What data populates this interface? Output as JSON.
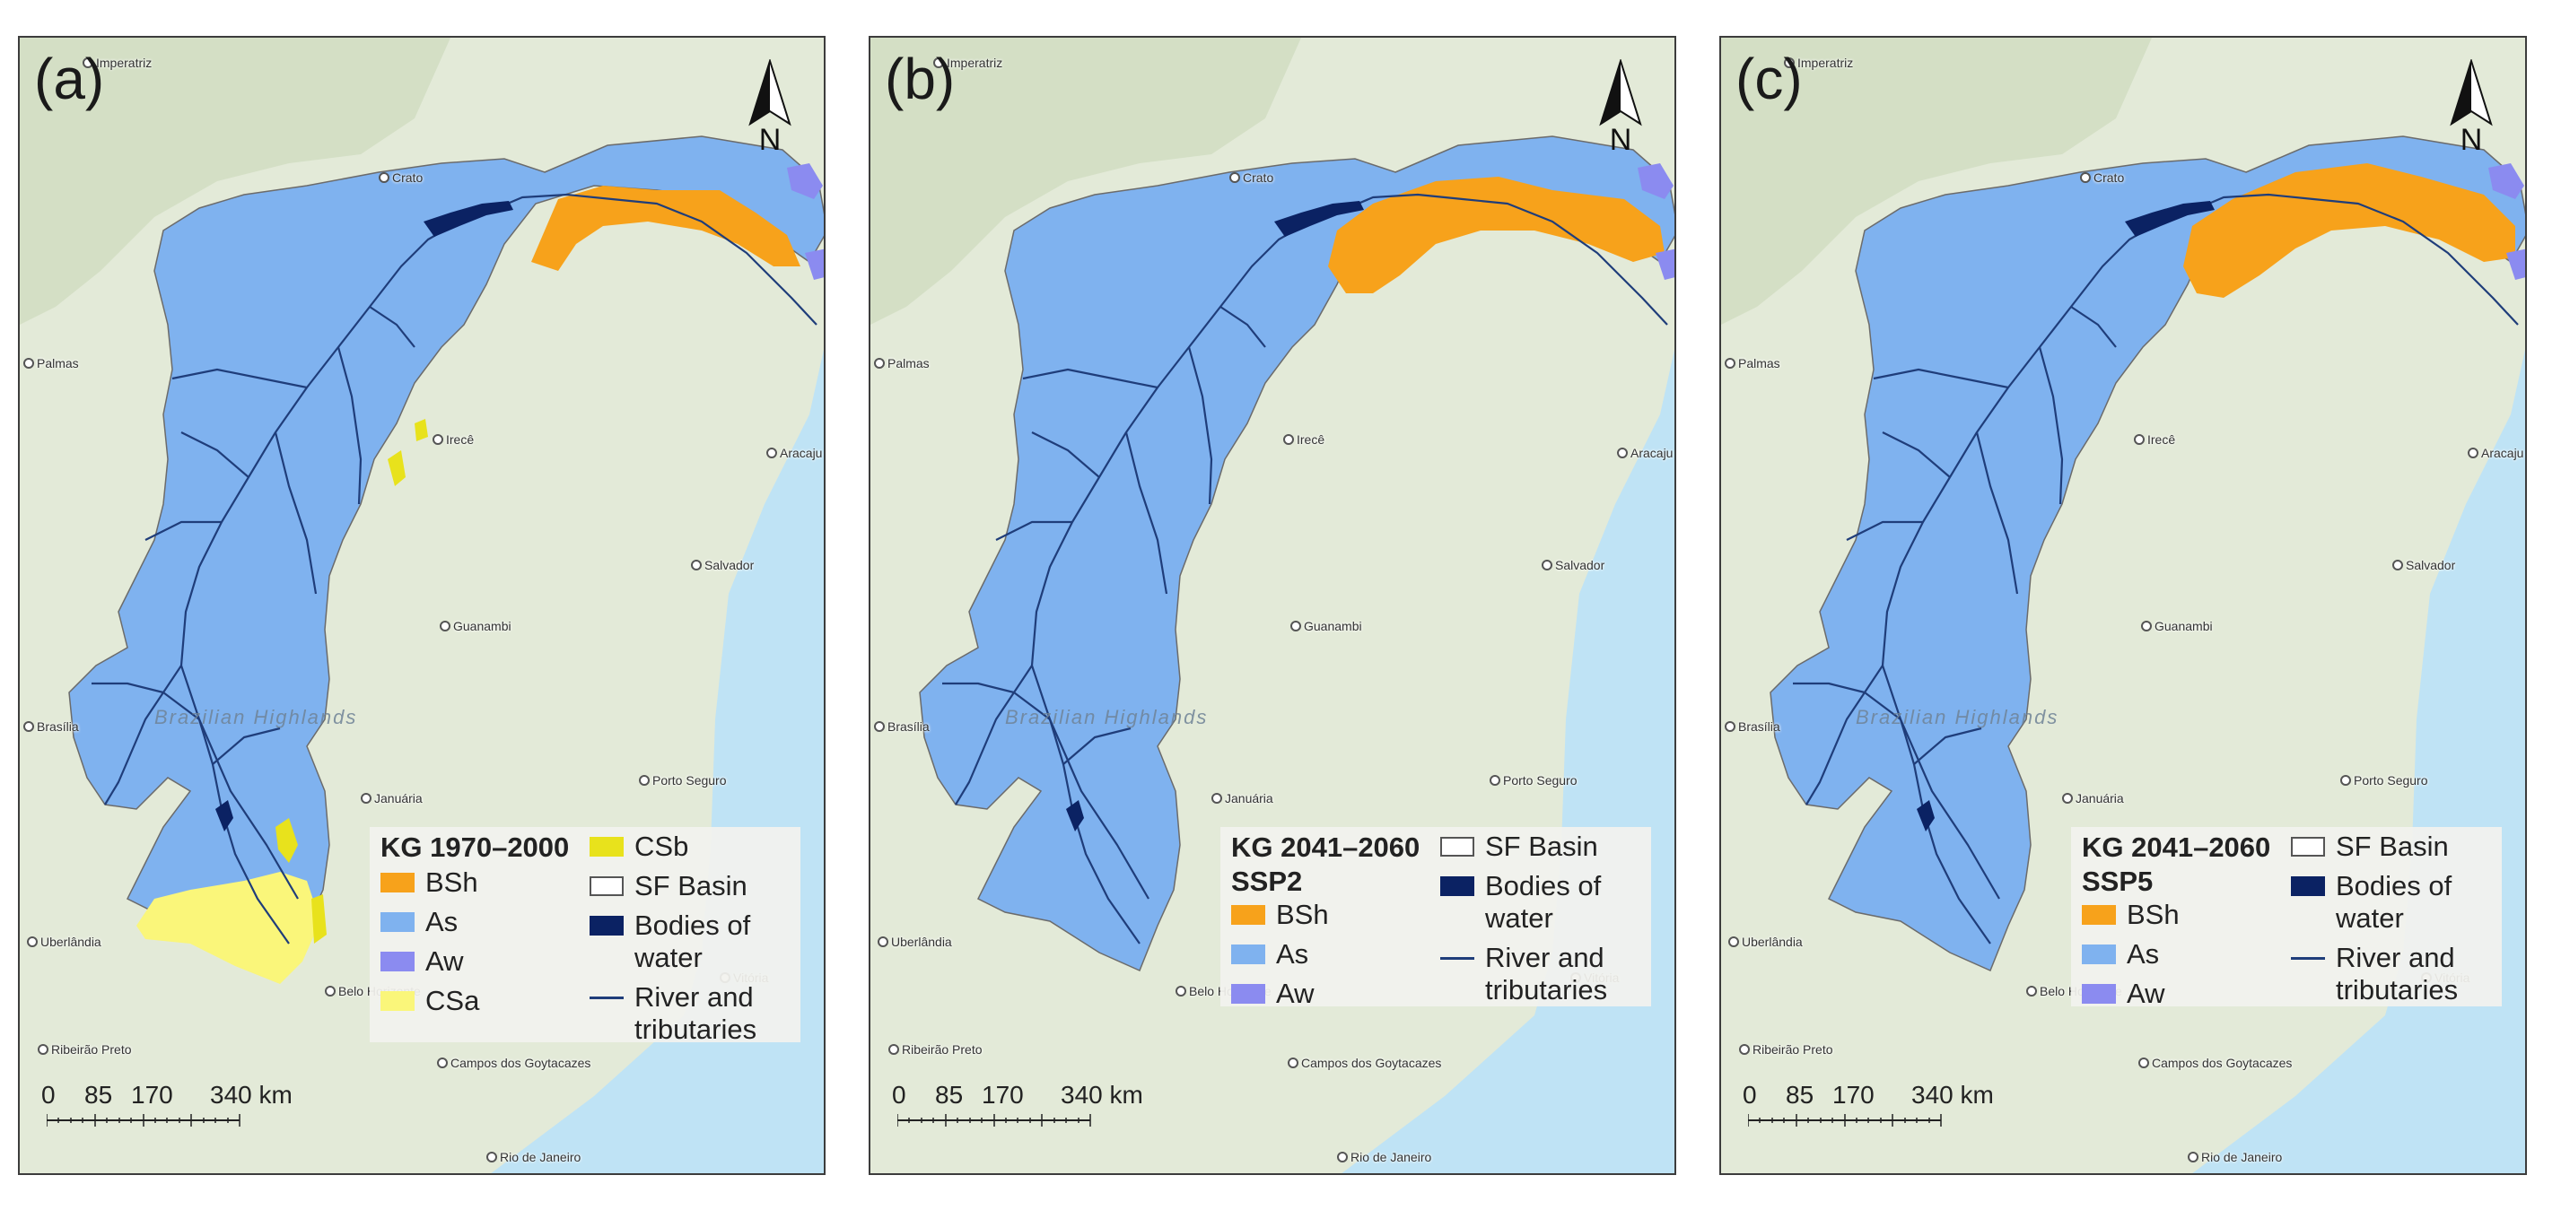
{
  "colors": {
    "BSh": "#f7a21b",
    "As": "#7fb2ef",
    "Aw": "#8b8bf0",
    "CSa": "#faf67a",
    "CSb": "#e8e21c",
    "water": "#0b2263",
    "river": "#1f3d7a",
    "ocean": "#bfe3f5",
    "land": "#e3ead8"
  },
  "north_label": "N",
  "scale": {
    "ticks": [
      "0",
      "85",
      "170",
      "340 km"
    ]
  },
  "region_text": "Brazilian Highlands",
  "cities": [
    "Imperatriz",
    "Crato",
    "Palmas",
    "Aracaju",
    "Salvador",
    "Guanambi",
    "Brasília",
    "Porto Seguro",
    "Uberlândia",
    "Ribeirão Preto",
    "Campos dos Goytacazes",
    "Januária",
    "Irecê",
    "Belo Horizonte",
    "Rio de Janeiro",
    "Vitória"
  ],
  "panels": [
    {
      "label": "(a)",
      "legend": {
        "title": "KG 1970–2000",
        "items": [
          {
            "key": "BSh",
            "label": "BSh"
          },
          {
            "key": "As",
            "label": "As"
          },
          {
            "key": "Aw",
            "label": "Aw"
          },
          {
            "key": "CSa",
            "label": "CSa"
          }
        ],
        "right_items": [
          {
            "key": "CSb",
            "label": "CSb",
            "kind": "swatch"
          },
          {
            "key": "basin",
            "label": "SF Basin",
            "kind": "outline"
          },
          {
            "key": "water",
            "label": "Bodies of water",
            "kind": "swatch"
          },
          {
            "key": "river",
            "label": "River and tributaries",
            "kind": "line"
          }
        ]
      }
    },
    {
      "label": "(b)",
      "legend": {
        "title": "KG 2041–2060 SSP2",
        "items": [
          {
            "key": "BSh",
            "label": "BSh"
          },
          {
            "key": "As",
            "label": "As"
          },
          {
            "key": "Aw",
            "label": "Aw"
          }
        ],
        "right_items": [
          {
            "key": "basin",
            "label": "SF Basin",
            "kind": "outline"
          },
          {
            "key": "water",
            "label": "Bodies of water",
            "kind": "swatch"
          },
          {
            "key": "river",
            "label": "River and tributaries",
            "kind": "line"
          }
        ]
      }
    },
    {
      "label": "(c)",
      "legend": {
        "title": "KG 2041–2060 SSP5",
        "items": [
          {
            "key": "BSh",
            "label": "BSh"
          },
          {
            "key": "As",
            "label": "As"
          },
          {
            "key": "Aw",
            "label": "Aw"
          }
        ],
        "right_items": [
          {
            "key": "basin",
            "label": "SF Basin",
            "kind": "outline"
          },
          {
            "key": "water",
            "label": "Bodies of water",
            "kind": "swatch"
          },
          {
            "key": "river",
            "label": "River and tributaries",
            "kind": "line"
          }
        ]
      }
    }
  ]
}
